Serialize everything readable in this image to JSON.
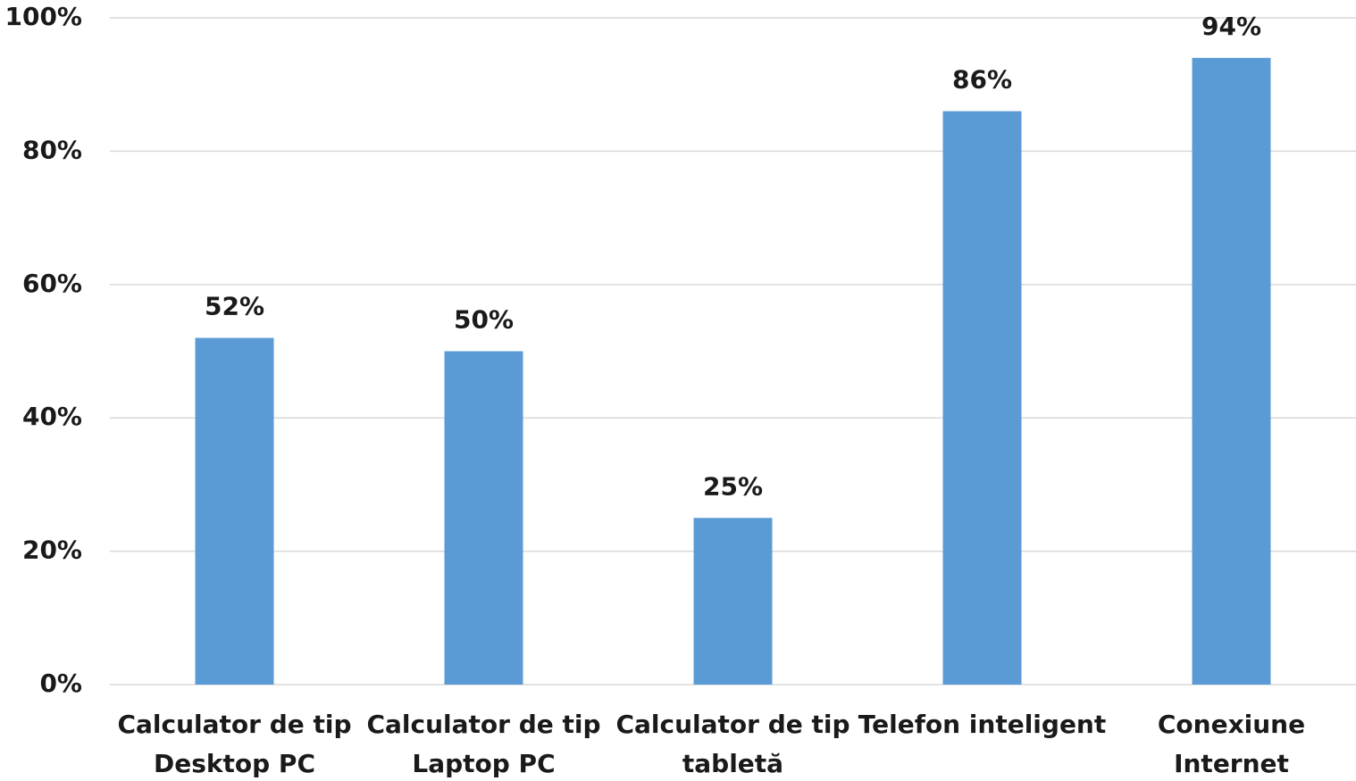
{
  "chart_data": {
    "type": "bar",
    "categories": [
      "Calculator de tip\nDesktop PC",
      "Calculator de tip\nLaptop PC",
      "Calculator de tip\ntabletă",
      "Telefon inteligent",
      "Conexiune\nInternet"
    ],
    "values": [
      52,
      50,
      25,
      86,
      94
    ],
    "value_labels": [
      "52%",
      "50%",
      "25%",
      "86%",
      "94%"
    ],
    "color": "#5b9bd5",
    "ylim": [
      0,
      100
    ],
    "yticks": [
      {
        "value": 0,
        "label": "0%"
      },
      {
        "value": 20,
        "label": "20%"
      },
      {
        "value": 40,
        "label": "40%"
      },
      {
        "value": 60,
        "label": "60%"
      },
      {
        "value": 80,
        "label": "80%"
      },
      {
        "value": 100,
        "label": "100%"
      }
    ],
    "grid": true
  }
}
